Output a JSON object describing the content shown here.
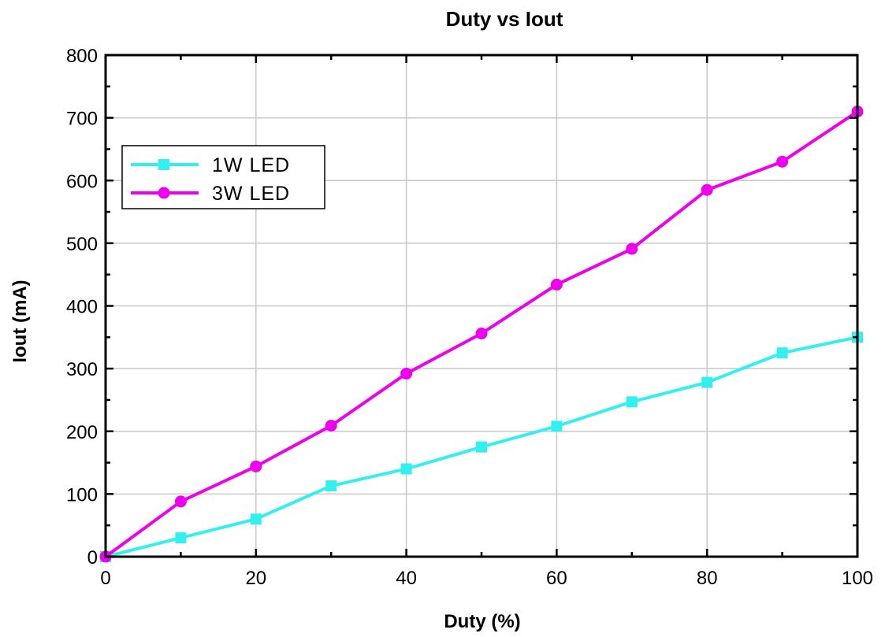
{
  "chart_data": {
    "type": "line",
    "title": "Duty vs Iout",
    "xlabel": "Duty (%)",
    "ylabel": "Iout (mA)",
    "xlim": [
      0,
      100
    ],
    "ylim": [
      0,
      800
    ],
    "xticks": [
      0,
      20,
      40,
      60,
      80,
      100
    ],
    "yticks": [
      0,
      100,
      200,
      300,
      400,
      500,
      600,
      700,
      800
    ],
    "grid": true,
    "legend_position": "upper-left",
    "x": [
      0,
      10,
      20,
      30,
      40,
      50,
      60,
      70,
      80,
      90,
      100
    ],
    "series": [
      {
        "name": "1W LED",
        "color": "#33f0f0",
        "marker": "square",
        "values": [
          0,
          30,
          60,
          113,
          140,
          175,
          208,
          247,
          278,
          325,
          350
        ]
      },
      {
        "name": "3W LED",
        "color": "#ee00ee",
        "marker": "circle",
        "values": [
          0,
          88,
          144,
          209,
          292,
          356,
          434,
          491,
          585,
          630,
          710
        ]
      }
    ]
  }
}
